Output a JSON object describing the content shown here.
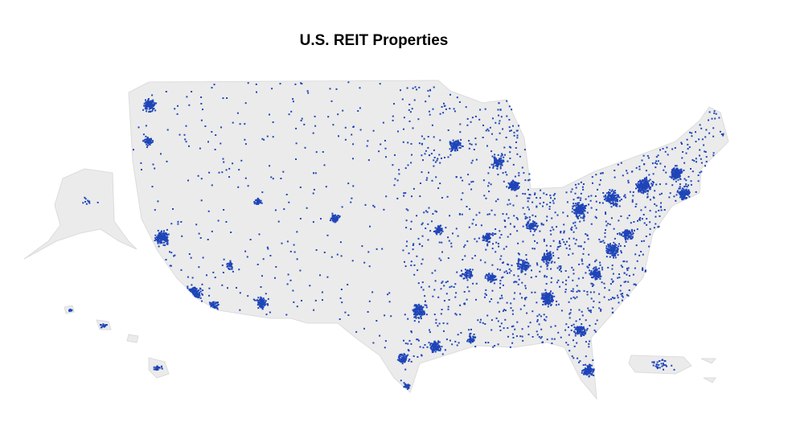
{
  "title": "U.S. REIT Properties"
}
